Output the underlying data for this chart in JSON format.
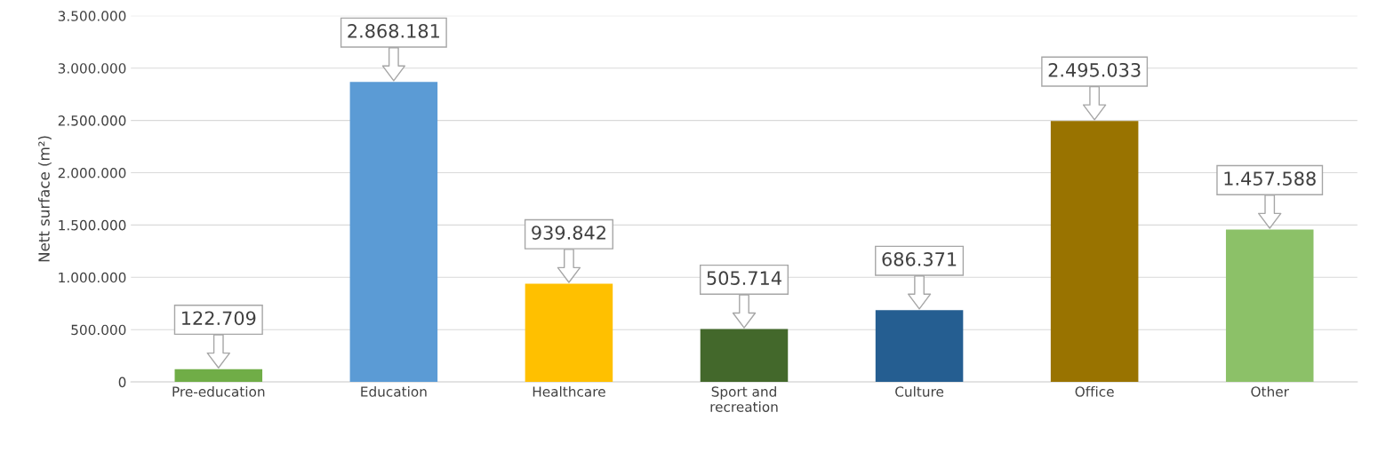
{
  "chart_data": {
    "type": "bar",
    "ylabel": "Nett surface (m²)",
    "categories": [
      "Pre-education",
      "Education",
      "Healthcare",
      "Sport and\nrecreation",
      "Culture",
      "Office",
      "Other"
    ],
    "values": [
      122709,
      2868181,
      939842,
      505714,
      686371,
      2495033,
      1457588
    ],
    "colors": [
      "#70ad47",
      "#5b9bd5",
      "#ffc000",
      "#43682b",
      "#255e91",
      "#997300",
      "#8cc168"
    ],
    "value_labels": [
      "122.709",
      "2.868.181",
      "939.842",
      "505.714",
      "686.371",
      "2.495.033",
      "1.457.588"
    ],
    "ylim": [
      0,
      3500000
    ],
    "yticks": [
      {
        "value": 0,
        "label": "0"
      },
      {
        "value": 500000,
        "label": "500.000"
      },
      {
        "value": 1000000,
        "label": "1.000.000"
      },
      {
        "value": 1500000,
        "label": "1.500.000"
      },
      {
        "value": 2000000,
        "label": "2.000.000"
      },
      {
        "value": 2500000,
        "label": "2.500.000"
      },
      {
        "value": 3000000,
        "label": "3.000.000"
      },
      {
        "value": 3500000,
        "label": "3.500.000"
      }
    ],
    "grid": "y",
    "legend": false
  }
}
